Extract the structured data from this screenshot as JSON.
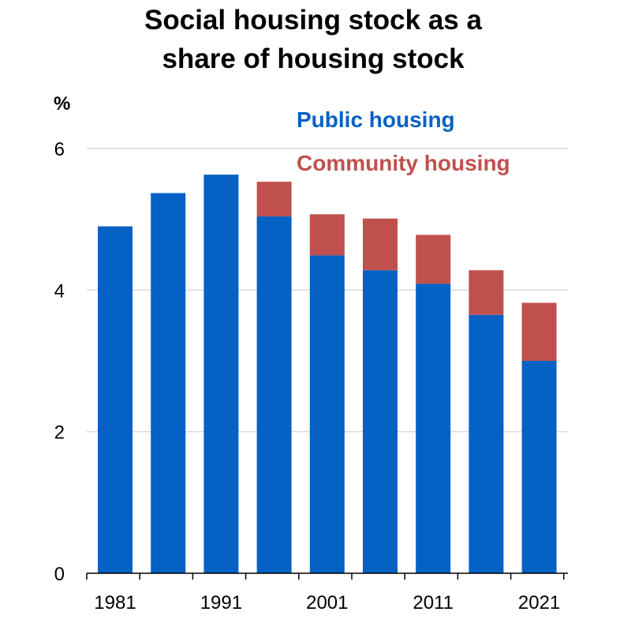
{
  "chart_data": {
    "type": "bar",
    "stacked": true,
    "title_lines": [
      "Social housing stock as a",
      "share of housing stock"
    ],
    "ylabel": "%",
    "ylim": [
      0,
      6
    ],
    "yticks": [
      0,
      2,
      4,
      6
    ],
    "ytick_labels": [
      "0",
      "2",
      "4",
      "6"
    ],
    "grid": true,
    "legend_position": "top-right",
    "categories": [
      "1981",
      "1986",
      "1991",
      "1996",
      "2001",
      "2006",
      "2011",
      "2016",
      "2021"
    ],
    "xtick_labels": [
      {
        "label": "1981",
        "index": 0
      },
      {
        "label": "1991",
        "index": 2
      },
      {
        "label": "2001",
        "index": 4
      },
      {
        "label": "2011",
        "index": 6
      },
      {
        "label": "2021",
        "index": 8
      }
    ],
    "series": [
      {
        "name": "Public housing",
        "color": "#0561C4",
        "values": [
          4.9,
          5.37,
          5.63,
          5.04,
          4.49,
          4.28,
          4.09,
          3.65,
          3.0
        ]
      },
      {
        "name": "Community housing",
        "color": "#C0504D",
        "values": [
          0,
          0,
          0,
          0.49,
          0.58,
          0.73,
          0.69,
          0.63,
          0.82
        ]
      }
    ]
  }
}
